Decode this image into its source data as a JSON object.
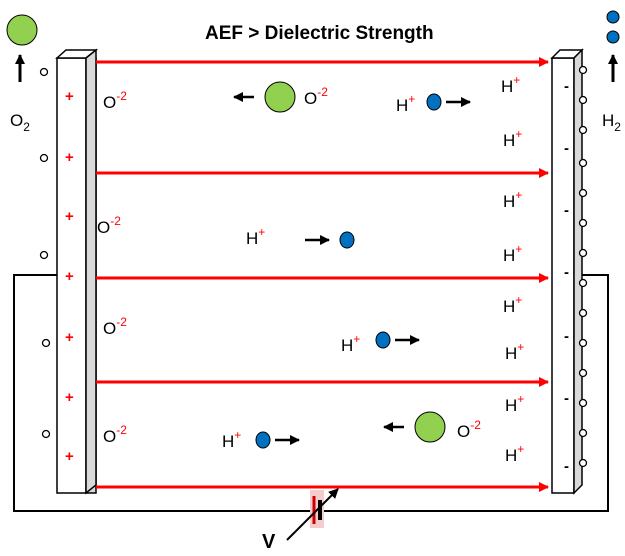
{
  "title": "AEF > Dielectric Strength",
  "voltage_label": "V",
  "anode": {
    "product_label_base": "O",
    "product_label_sub": "2",
    "charges": [
      "+",
      "+",
      "+",
      "+",
      "+",
      "+",
      "+",
      "+"
    ]
  },
  "cathode": {
    "product_label_base": "H",
    "product_label_sub": "2",
    "charges": [
      "-",
      "-",
      "-",
      "-",
      "-",
      "-",
      "-",
      "-",
      "-"
    ]
  },
  "ions": {
    "oxide_base": "O",
    "oxide_sup": "-2",
    "proton_base": "H",
    "proton_sup": "+"
  },
  "colors": {
    "field_line": "#ff0000",
    "charge": "#ff0000",
    "oxygen_bubble": "#92d050",
    "hydrogen_bubble": "#0070c0",
    "electrode": "#d9d9d9",
    "wire": "#000000"
  },
  "icons": {
    "oxygen": "green-circle",
    "hydrogen": "blue-circle",
    "battery": "variable-battery-symbol"
  }
}
